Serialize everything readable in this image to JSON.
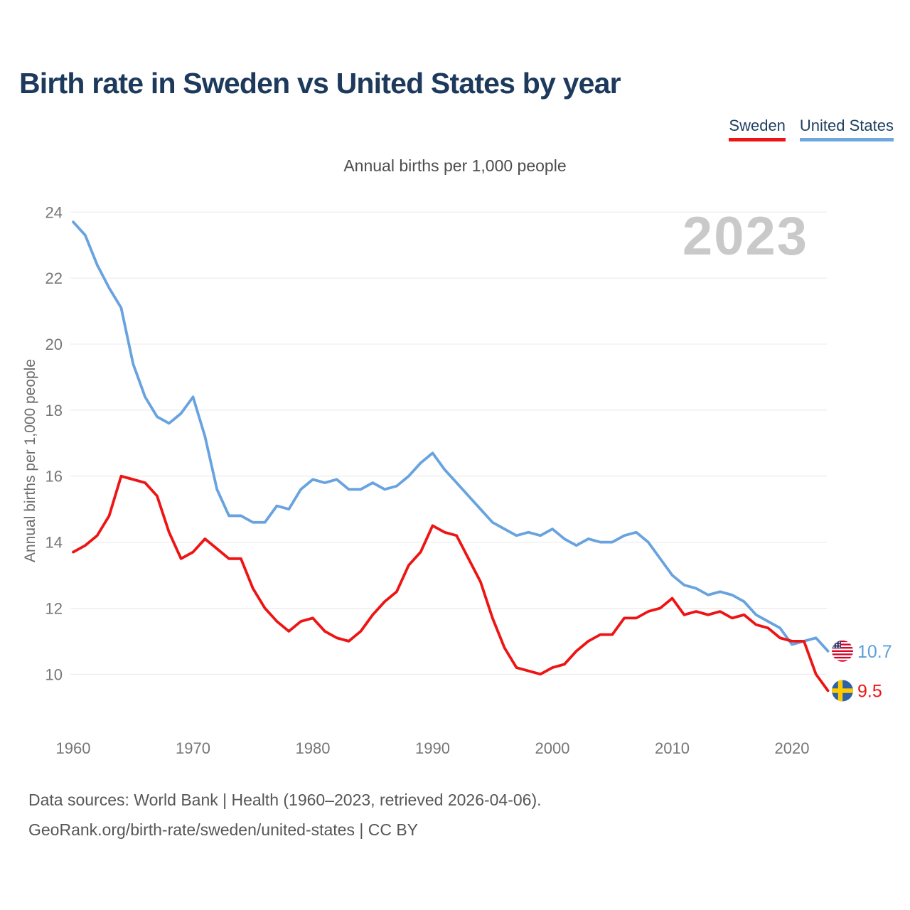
{
  "header": {
    "title": "Birth rate in Sweden vs United States by year"
  },
  "legend": {
    "items": [
      {
        "label": "Sweden",
        "color": "#ee1414"
      },
      {
        "label": "United States",
        "color": "#6fa8dc"
      }
    ]
  },
  "subtitle": "Annual births per 1,000 people",
  "watermark": "2023",
  "y_axis": {
    "label": "Annual births per 1,000 people",
    "ticks": [
      24,
      22,
      20,
      18,
      16,
      14,
      12,
      10
    ]
  },
  "x_axis": {
    "ticks": [
      1960,
      1970,
      1980,
      1990,
      2000,
      2010,
      2020
    ]
  },
  "end_labels": [
    {
      "series": "United States",
      "value": "10.7",
      "flag": "us-flag-icon",
      "color": "#5d9fdb"
    },
    {
      "series": "Sweden",
      "value": "9.5",
      "flag": "sweden-flag-icon",
      "color": "#ee1414"
    }
  ],
  "icons": {
    "us_flag": {
      "stripe_red": "#d80027",
      "canton_blue": "#3c3b6e",
      "white": "#ffffff"
    },
    "sweden_flag": {
      "field_blue": "#2e62a8",
      "cross_yellow": "#fecb00"
    }
  },
  "footer": {
    "line1": "Data sources: World Bank | Health (1960–2023, retrieved 2026-04-06).",
    "line2": "GeoRank.org/birth-rate/sweden/united-states | CC BY"
  },
  "chart_data": {
    "type": "line",
    "title": "Birth rate in Sweden vs United States by year",
    "ylabel": "Annual births per 1,000 people",
    "xlabel": "",
    "ylim": [
      9,
      24.5
    ],
    "xlim": [
      1960,
      2023
    ],
    "grid": "horizontal-only",
    "legend_position": "top-right",
    "x": [
      1960,
      1961,
      1962,
      1963,
      1964,
      1965,
      1966,
      1967,
      1968,
      1969,
      1970,
      1971,
      1972,
      1973,
      1974,
      1975,
      1976,
      1977,
      1978,
      1979,
      1980,
      1981,
      1982,
      1983,
      1984,
      1985,
      1986,
      1987,
      1988,
      1989,
      1990,
      1991,
      1992,
      1993,
      1994,
      1995,
      1996,
      1997,
      1998,
      1999,
      2000,
      2001,
      2002,
      2003,
      2004,
      2005,
      2006,
      2007,
      2008,
      2009,
      2010,
      2011,
      2012,
      2013,
      2014,
      2015,
      2016,
      2017,
      2018,
      2019,
      2020,
      2021,
      2022,
      2023
    ],
    "series": [
      {
        "name": "Sweden",
        "color": "#ee1414",
        "values": [
          13.7,
          13.9,
          14.2,
          14.8,
          16.0,
          15.9,
          15.8,
          15.4,
          14.3,
          13.5,
          13.7,
          14.1,
          13.8,
          13.5,
          13.5,
          12.6,
          12.0,
          11.6,
          11.3,
          11.6,
          11.7,
          11.3,
          11.1,
          11.0,
          11.3,
          11.8,
          12.2,
          12.5,
          13.3,
          13.7,
          14.5,
          14.3,
          14.2,
          13.5,
          12.8,
          11.7,
          10.8,
          10.2,
          10.1,
          10.0,
          10.2,
          10.3,
          10.7,
          11.0,
          11.2,
          11.2,
          11.7,
          11.7,
          11.9,
          12.0,
          12.3,
          11.8,
          11.9,
          11.8,
          11.9,
          11.7,
          11.8,
          11.5,
          11.4,
          11.1,
          11.0,
          11.0,
          10.0,
          9.5
        ]
      },
      {
        "name": "United States",
        "color": "#68a3e0",
        "values": [
          23.7,
          23.3,
          22.4,
          21.7,
          21.1,
          19.4,
          18.4,
          17.8,
          17.6,
          17.9,
          18.4,
          17.2,
          15.6,
          14.8,
          14.8,
          14.6,
          14.6,
          15.1,
          15.0,
          15.6,
          15.9,
          15.8,
          15.9,
          15.6,
          15.6,
          15.8,
          15.6,
          15.7,
          16.0,
          16.4,
          16.7,
          16.2,
          15.8,
          15.4,
          15.0,
          14.6,
          14.4,
          14.2,
          14.3,
          14.2,
          14.4,
          14.1,
          13.9,
          14.1,
          14.0,
          14.0,
          14.2,
          14.3,
          14.0,
          13.5,
          13.0,
          12.7,
          12.6,
          12.4,
          12.5,
          12.4,
          12.2,
          11.8,
          11.6,
          11.4,
          10.9,
          11.0,
          11.1,
          10.7
        ]
      }
    ],
    "end_values": {
      "Sweden": 9.5,
      "United States": 10.7
    }
  }
}
